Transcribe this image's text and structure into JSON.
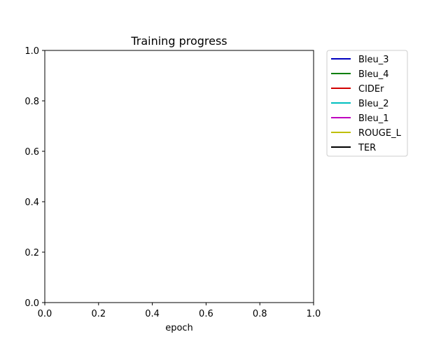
{
  "chart_data": {
    "type": "line",
    "title": "Training progress",
    "xlabel": "epoch",
    "ylabel": "",
    "xlim": [
      0.0,
      1.0
    ],
    "ylim": [
      0.0,
      1.0
    ],
    "xticks": [
      "0.0",
      "0.2",
      "0.4",
      "0.6",
      "0.8",
      "1.0"
    ],
    "yticks": [
      "0.0",
      "0.2",
      "0.4",
      "0.6",
      "0.8",
      "1.0"
    ],
    "grid": false,
    "legend_position": "outside-right-top",
    "series": [
      {
        "name": "Bleu_3",
        "color": "#0000bf",
        "x": [],
        "y": []
      },
      {
        "name": "Bleu_4",
        "color": "#007f00",
        "x": [],
        "y": []
      },
      {
        "name": "CIDEr",
        "color": "#d20000",
        "x": [],
        "y": []
      },
      {
        "name": "Bleu_2",
        "color": "#00bfbf",
        "x": [],
        "y": []
      },
      {
        "name": "Bleu_1",
        "color": "#bf00bf",
        "x": [],
        "y": []
      },
      {
        "name": "ROUGE_L",
        "color": "#bfbf00",
        "x": [],
        "y": []
      },
      {
        "name": "TER",
        "color": "#000000",
        "x": [],
        "y": []
      }
    ]
  }
}
